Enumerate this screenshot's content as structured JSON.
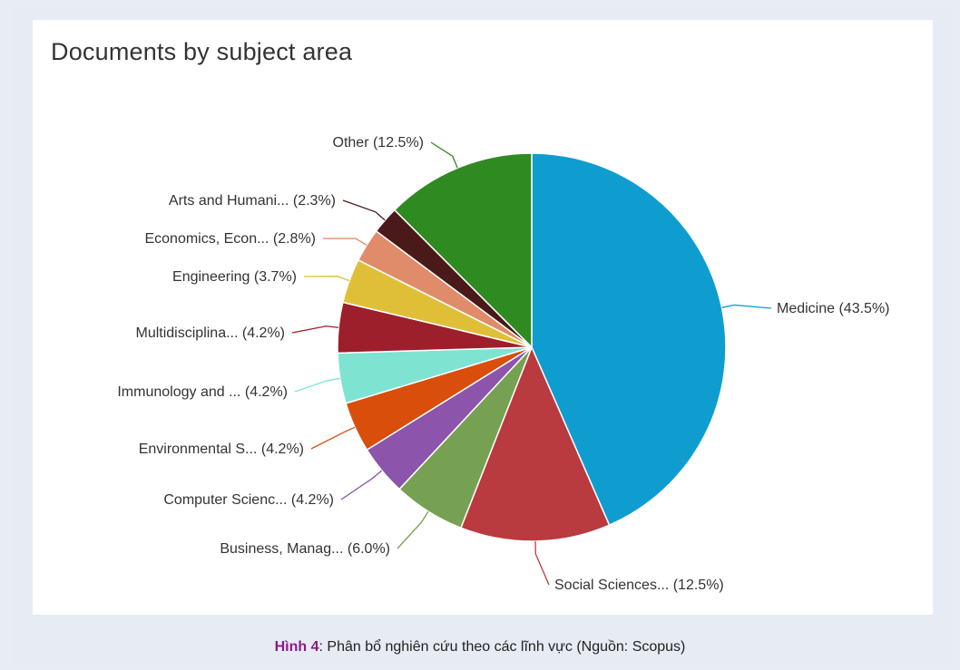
{
  "chart_data": {
    "type": "pie",
    "title": "Documents by subject area",
    "slices": [
      {
        "label": "Medicine (43.5%)",
        "value": 43.5,
        "color": "#0f9dcf"
      },
      {
        "label": "Social Sciences... (12.5%)",
        "value": 12.5,
        "color": "#b93a3f"
      },
      {
        "label": "Business, Manag... (6.0%)",
        "value": 6.0,
        "color": "#76a052"
      },
      {
        "label": "Computer Scienc... (4.2%)",
        "value": 4.2,
        "color": "#8c54ab"
      },
      {
        "label": "Environmental S... (4.2%)",
        "value": 4.2,
        "color": "#d94e0a"
      },
      {
        "label": "Immunology and ... (4.2%)",
        "value": 4.2,
        "color": "#7fe3d2"
      },
      {
        "label": "Multidisciplina... (4.2%)",
        "value": 4.2,
        "color": "#9c1f2b"
      },
      {
        "label": "Engineering (3.7%)",
        "value": 3.7,
        "color": "#e0bf38"
      },
      {
        "label": "Economics, Econ... (2.8%)",
        "value": 2.8,
        "color": "#e08b6a"
      },
      {
        "label": "Arts and Humani... (2.3%)",
        "value": 2.3,
        "color": "#4a1919"
      },
      {
        "label": "Other (12.5%)",
        "value": 12.5,
        "color": "#2f8a22"
      }
    ]
  },
  "caption": {
    "figure_label": "Hình 4",
    "text": ": Phân bổ nghiên cứu theo các lĩnh vực (Nguồn: Scopus)"
  }
}
